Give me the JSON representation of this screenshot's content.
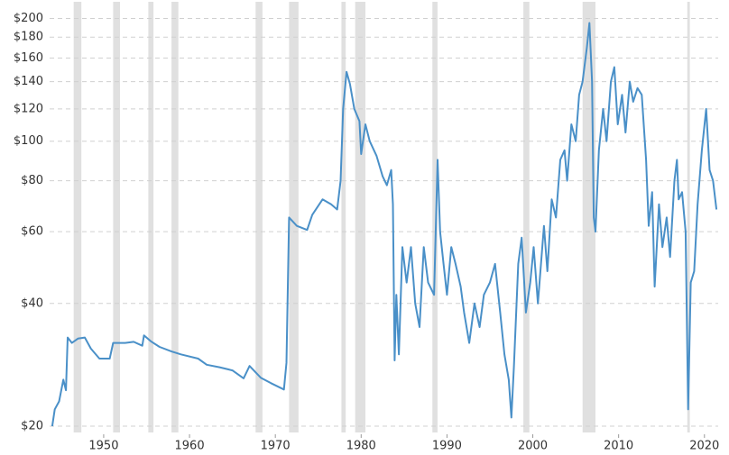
{
  "chart_data": {
    "type": "line",
    "log_y": true,
    "color": "#4a90c8",
    "shade_color": "#e0e0e0",
    "grid": true,
    "xlim": [
      1943.7,
      2021.6
    ],
    "ylim": [
      19.3,
      211
    ],
    "xticks": [
      1950,
      1960,
      1970,
      1980,
      1990,
      2000,
      2010,
      2020
    ],
    "yticks": [
      {
        "value": 20,
        "label": "$20"
      },
      {
        "value": 40,
        "label": "$40"
      },
      {
        "value": 60,
        "label": "$60"
      },
      {
        "value": 80,
        "label": "$80"
      },
      {
        "value": 100,
        "label": "$100"
      },
      {
        "value": 120,
        "label": "$120"
      },
      {
        "value": 140,
        "label": "$140"
      },
      {
        "value": 160,
        "label": "$160"
      },
      {
        "value": 180,
        "label": "$180"
      },
      {
        "value": 200,
        "label": "$200"
      }
    ],
    "shaded_periods": [
      [
        1946.5,
        1947.4
      ],
      [
        1951.1,
        1951.9
      ],
      [
        1955.2,
        1955.8
      ],
      [
        1957.9,
        1958.7
      ],
      [
        1967.7,
        1968.5
      ],
      [
        1971.6,
        1972.7
      ],
      [
        1977.7,
        1978.2
      ],
      [
        1979.3,
        1980.5
      ],
      [
        1988.3,
        1988.9
      ],
      [
        1998.9,
        1999.6
      ],
      [
        2005.8,
        2007.3
      ],
      [
        2018.0,
        2018.3
      ]
    ],
    "x": [
      1944.0,
      1944.3,
      1944.8,
      1945.3,
      1945.6,
      1945.8,
      1946.3,
      1947.0,
      1947.8,
      1948.5,
      1949.5,
      1950.7,
      1951.1,
      1952.5,
      1953.5,
      1954.5,
      1954.7,
      1955.5,
      1956.5,
      1957.9,
      1959.0,
      1961.0,
      1962.0,
      1963.5,
      1965.0,
      1966.3,
      1967.0,
      1968.3,
      1969.5,
      1971.0,
      1971.3,
      1971.6,
      1972.5,
      1973.7,
      1974.3,
      1975.5,
      1976.5,
      1977.2,
      1977.6,
      1977.9,
      1978.3,
      1978.7,
      1979.2,
      1979.8,
      1980.0,
      1980.5,
      1981.0,
      1981.8,
      1982.5,
      1983.0,
      1983.5,
      1983.7,
      1983.9,
      1984.1,
      1984.4,
      1984.8,
      1985.3,
      1985.8,
      1986.3,
      1986.8,
      1987.3,
      1987.8,
      1988.5,
      1988.9,
      1989.2,
      1989.6,
      1990.0,
      1990.5,
      1991.0,
      1991.6,
      1992.0,
      1992.6,
      1993.2,
      1993.8,
      1994.3,
      1995.0,
      1995.6,
      1996.2,
      1996.7,
      1997.2,
      1997.5,
      1997.8,
      1998.3,
      1998.7,
      1999.2,
      1999.7,
      2000.1,
      2000.6,
      2001.3,
      2001.7,
      2002.2,
      2002.7,
      2003.2,
      2003.7,
      2004.0,
      2004.5,
      2005.0,
      2005.4,
      2005.8,
      2006.3,
      2006.6,
      2006.9,
      2007.1,
      2007.3,
      2007.7,
      2008.2,
      2008.6,
      2009.1,
      2009.5,
      2009.9,
      2010.4,
      2010.8,
      2011.3,
      2011.7,
      2012.2,
      2012.7,
      2013.2,
      2013.5,
      2013.9,
      2014.2,
      2014.7,
      2015.1,
      2015.6,
      2016.0,
      2016.5,
      2016.8,
      2017.0,
      2017.4,
      2017.8,
      2018.1,
      2018.4,
      2018.8,
      2019.2,
      2019.7,
      2020.2,
      2020.6,
      2021.0,
      2021.4
    ],
    "values": [
      20,
      22,
      23,
      26,
      24.5,
      33,
      32,
      32.8,
      33,
      31,
      29.3,
      29.3,
      32,
      32,
      32.2,
      31.5,
      33.4,
      32.3,
      31.3,
      30.5,
      30,
      29.3,
      28.3,
      27.9,
      27.4,
      26.2,
      28.1,
      26.3,
      25.5,
      24.6,
      28.6,
      65,
      62,
      60.6,
      66,
      72,
      70,
      68,
      80,
      120,
      148,
      138,
      120,
      112,
      93,
      110,
      100,
      92,
      82,
      78,
      85,
      70,
      29,
      42,
      30,
      55,
      45,
      55,
      40,
      35,
      55,
      45,
      42,
      90,
      60,
      50,
      42,
      55,
      50,
      44,
      38,
      32,
      40,
      35,
      42,
      45,
      50,
      38,
      30,
      26,
      21,
      28,
      50,
      58,
      38,
      45,
      55,
      40,
      62,
      48,
      72,
      65,
      90,
      95,
      80,
      110,
      100,
      130,
      140,
      170,
      195,
      140,
      65,
      60,
      95,
      120,
      100,
      140,
      152,
      110,
      130,
      105,
      140,
      125,
      135,
      130,
      90,
      62,
      75,
      44,
      70,
      55,
      65,
      52,
      80,
      90,
      72,
      75,
      60,
      22,
      45,
      48,
      70,
      95,
      120,
      85,
      80,
      68
    ]
  }
}
